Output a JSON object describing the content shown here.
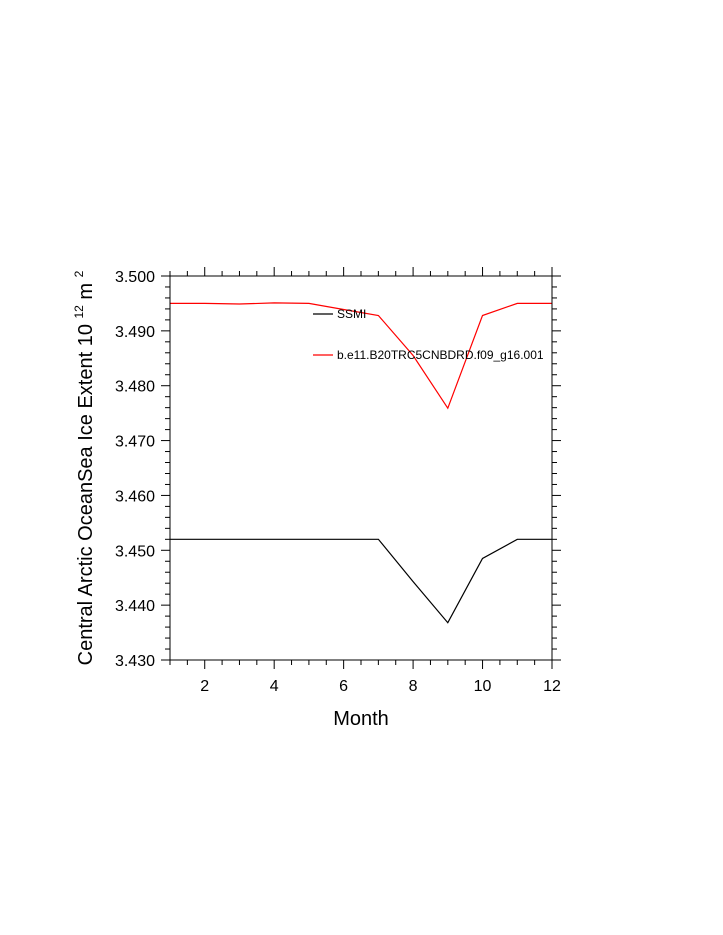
{
  "chart_data": {
    "type": "line",
    "title": "",
    "xlabel": "Month",
    "ylabel": "Central Arctic OceanSea Ice Extent 10",
    "ylabel_exponent": "12",
    "ylabel_unit": "m",
    "ylabel_unit_exponent": "2",
    "xlim": [
      1,
      12
    ],
    "ylim": [
      3.43,
      3.5
    ],
    "x_ticks": [
      2,
      4,
      6,
      8,
      10,
      12
    ],
    "x_tick_labels": [
      "2",
      "4",
      "6",
      "8",
      "10",
      "12"
    ],
    "y_ticks": [
      3.43,
      3.44,
      3.45,
      3.46,
      3.47,
      3.48,
      3.49,
      3.5
    ],
    "y_tick_labels": [
      "3.430",
      "3.440",
      "3.450",
      "3.460",
      "3.470",
      "3.480",
      "3.490",
      "3.500"
    ],
    "grid": false,
    "legend_position": "top-right inside",
    "x": [
      1,
      2,
      3,
      4,
      5,
      6,
      7,
      8,
      9,
      10,
      11,
      12
    ],
    "series": [
      {
        "name": "SSMI",
        "color": "#000000",
        "values": [
          3.452,
          3.452,
          3.452,
          3.452,
          3.452,
          3.452,
          3.452,
          3.4443,
          3.4368,
          3.4485,
          3.452,
          3.452
        ]
      },
      {
        "name": "b.e11.B20TRC5CNBDRD.f09_g16.001",
        "color": "#ff0000",
        "values": [
          3.495,
          3.495,
          3.4949,
          3.4951,
          3.495,
          3.4939,
          3.4928,
          3.4855,
          3.4759,
          3.4928,
          3.495,
          3.495
        ]
      }
    ]
  }
}
